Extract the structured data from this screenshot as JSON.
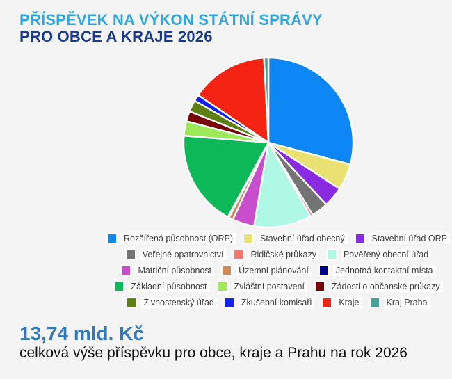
{
  "page": {
    "background": "#F4F4F4"
  },
  "header": {
    "title_line1": "PŘÍSPĚVEK NA VÝKON STÁTNÍ SPRÁVY",
    "title_line2": "PRO OBCE A KRAJE 2026",
    "title_line1_color": "#30A7E0",
    "title_line2_color": "#1A3B94"
  },
  "chart_data": {
    "type": "pie",
    "title": "PŘÍSPĚVEK NA VÝKON STÁTNÍ SPRÁVY PRO OBCE A KRAJE 2026",
    "legend_position": "bottom",
    "start_angle_deg": 0,
    "direction": "clockwise",
    "slices": [
      {
        "label": "Rozšířená působnost (ORP)",
        "color": "#0D87F5",
        "angle_deg": 105,
        "value_pct": 29.2
      },
      {
        "label": "Stavební úřad obecný",
        "color": "#E9E272",
        "angle_deg": 18,
        "value_pct": 5.0
      },
      {
        "label": "Stavební úřad ORP",
        "color": "#8A2BE2",
        "angle_deg": 14,
        "value_pct": 3.9
      },
      {
        "label": "Veřejné opatrovnictví",
        "color": "#747474",
        "angle_deg": 11.5,
        "value_pct": 3.2
      },
      {
        "label": "Řidičské průkazy",
        "color": "#F8766D",
        "angle_deg": 1.8,
        "value_pct": 0.5
      },
      {
        "label": "Pověřený obecní úřad",
        "color": "#AFF8E6",
        "angle_deg": 39.5,
        "value_pct": 11.0
      },
      {
        "label": "Matriční působnost",
        "color": "#C94ECB",
        "angle_deg": 15,
        "value_pct": 4.2
      },
      {
        "label": "Územní plánování",
        "color": "#CE8B57",
        "angle_deg": 3,
        "value_pct": 0.8
      },
      {
        "label": "Jednotná kontaktní místa",
        "color": "#00008B",
        "angle_deg": 0.8,
        "value_pct": 0.2
      },
      {
        "label": "Základní působnost",
        "color": "#0CB858",
        "angle_deg": 66,
        "value_pct": 18.3
      },
      {
        "label": "Zvláštní postavení",
        "color": "#9DE95A",
        "angle_deg": 10,
        "value_pct": 2.8
      },
      {
        "label": "Žádosti o občanské průkazy",
        "color": "#7A0507",
        "angle_deg": 7,
        "value_pct": 1.9
      },
      {
        "label": "Živnostenský úřad",
        "color": "#5E7F12",
        "angle_deg": 8,
        "value_pct": 2.2
      },
      {
        "label": "Zkušební komisaři",
        "color": "#1322F0",
        "angle_deg": 4.4,
        "value_pct": 1.2
      },
      {
        "label": "Kraje",
        "color": "#F42313",
        "angle_deg": 53,
        "value_pct": 14.7
      },
      {
        "label": "Kraj Praha",
        "color": "#4AA196",
        "angle_deg": 3,
        "value_pct": 0.8
      }
    ],
    "legend_rows": [
      [
        0,
        1,
        2
      ],
      [
        3,
        4,
        5
      ],
      [
        6,
        7,
        8
      ],
      [
        9,
        10,
        11
      ],
      [
        12,
        13,
        14,
        15
      ]
    ]
  },
  "footer": {
    "total_value": "13,74 mld. Kč",
    "total_color": "#3477BD",
    "caption": "celková výše příspěvku pro obce, kraje a Prahu na rok 2026"
  }
}
